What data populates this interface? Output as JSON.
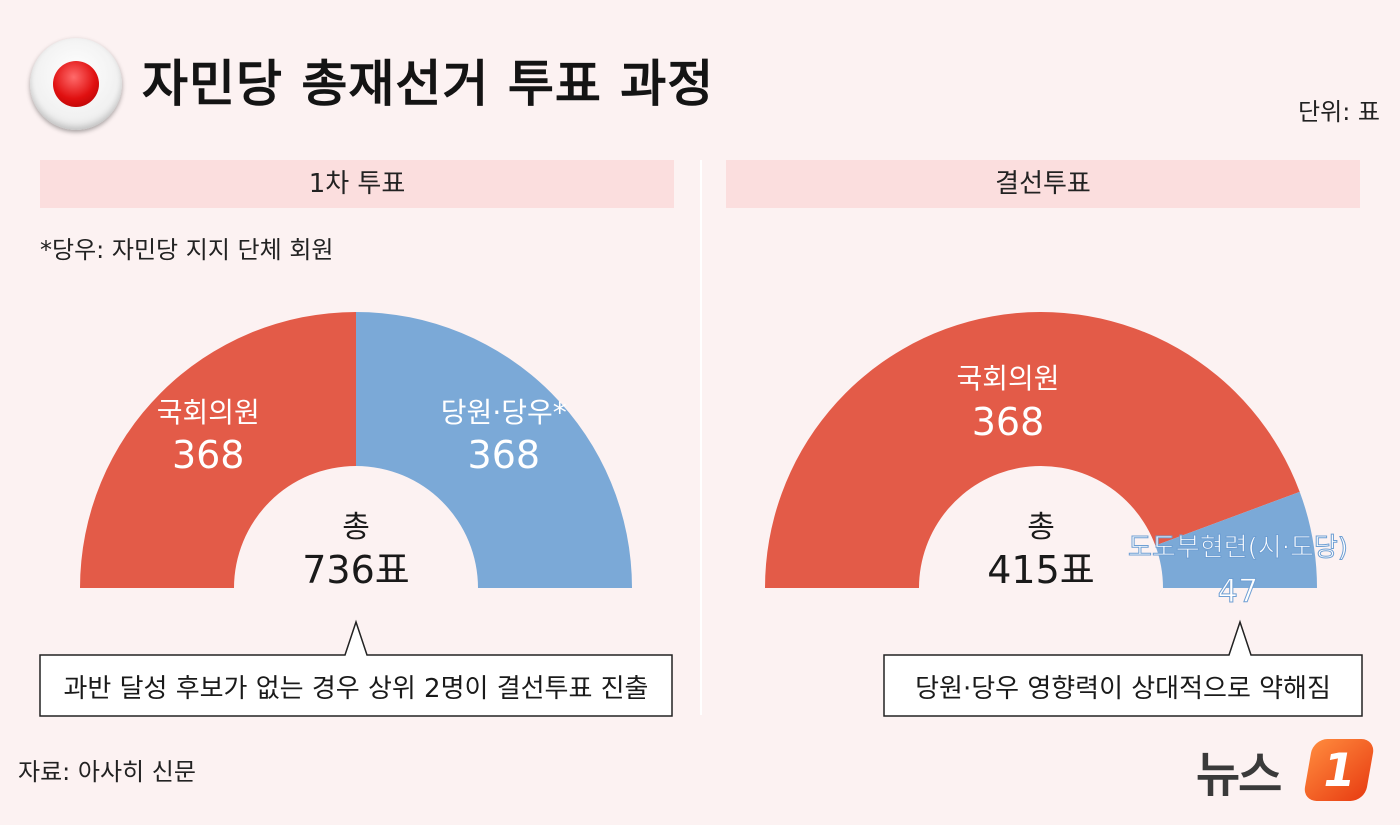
{
  "title": "자민당 총재선거 투표 과정",
  "unit": "단위: 표",
  "source": "자료: 아사히 신문",
  "logo": {
    "text": "뉴스",
    "badge": "1"
  },
  "panels": {
    "first": {
      "header": "1차 투표",
      "note": "*당우: 자민당 지지 단체 회원"
    },
    "runoff": {
      "header": "결선투표"
    }
  },
  "chart_data": [
    {
      "type": "pie",
      "title": "1차 투표",
      "slices": [
        {
          "name": "국회의원",
          "value": 368,
          "color": "#e35b48"
        },
        {
          "name": "당원·당우*",
          "value": 368,
          "color": "#7ba9d7"
        }
      ],
      "center_label": "총",
      "center_value": "736표",
      "callout": "과반 달성 후보가 없는 경우 상위 2명이 결선투표 진출"
    },
    {
      "type": "pie",
      "title": "결선투표",
      "slices": [
        {
          "name": "국회의원",
          "value": 368,
          "color": "#e35b48"
        },
        {
          "name": "도도부현련(시·도당)",
          "value": 47,
          "color": "#7ba9d7"
        }
      ],
      "center_label": "총",
      "center_value": "415표",
      "callout": "당원·당우 영향력이 상대적으로 약해짐"
    }
  ]
}
